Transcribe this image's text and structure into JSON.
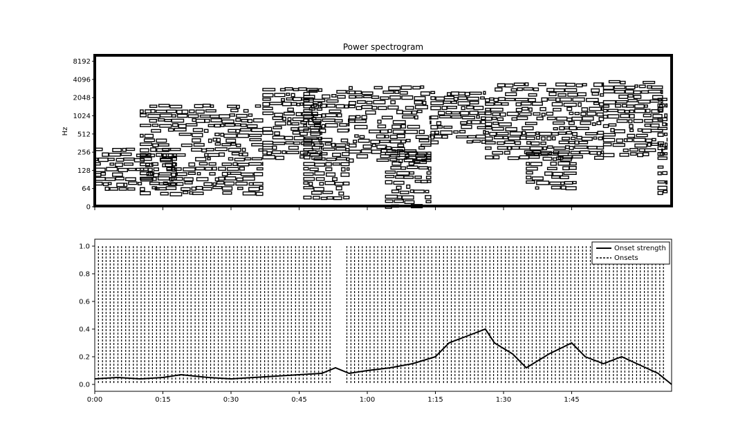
{
  "chart_data": [
    {
      "type": "heatmap",
      "title": "Power spectrogram",
      "ylabel": "Hz",
      "xlabel": "",
      "y_scale": "log",
      "ytick_labels": [
        "0",
        "64",
        "128",
        "256",
        "512",
        "1024",
        "2048",
        "4096",
        "8192"
      ],
      "xlim_seconds": [
        0,
        127
      ],
      "colormap": "black-and-white contour",
      "grid": false,
      "segments": [
        {
          "t0": 0,
          "t1": 18,
          "low": 60,
          "high": 300
        },
        {
          "t0": 10,
          "t1": 37,
          "low": 50,
          "high": 1600
        },
        {
          "t0": 37,
          "t1": 50,
          "low": 200,
          "high": 3000
        },
        {
          "t0": 46,
          "t1": 56,
          "low": 30,
          "high": 2800
        },
        {
          "t0": 56,
          "t1": 74,
          "low": 200,
          "high": 3200
        },
        {
          "t0": 64,
          "t1": 74,
          "low": 0,
          "high": 320
        },
        {
          "t0": 74,
          "t1": 86,
          "low": 350,
          "high": 2600
        },
        {
          "t0": 86,
          "t1": 112,
          "low": 200,
          "high": 3600
        },
        {
          "t0": 95,
          "t1": 106,
          "low": 60,
          "high": 260
        },
        {
          "t0": 112,
          "t1": 125,
          "low": 250,
          "high": 4000
        },
        {
          "t0": 124,
          "t1": 126,
          "low": 50,
          "high": 2000
        }
      ]
    },
    {
      "type": "line",
      "xlabel": "",
      "ylabel": "",
      "xtick_labels": [
        "0:00",
        "0:15",
        "0:30",
        "0:45",
        "1:00",
        "1:15",
        "1:30",
        "1:45"
      ],
      "xlim_seconds": [
        0,
        127
      ],
      "ylim": [
        0,
        1.05
      ],
      "ytick_labels": [
        "0.0",
        "0.2",
        "0.4",
        "0.6",
        "0.8",
        "1.0"
      ],
      "legend_position": "top-right",
      "grid": false,
      "series": [
        {
          "name": "Onset strength",
          "x": [
            0,
            5,
            10,
            15,
            19,
            25,
            30,
            35,
            40,
            45,
            50,
            53,
            56,
            60,
            65,
            70,
            75,
            78,
            82,
            86,
            88,
            92,
            95,
            100,
            105,
            108,
            112,
            116,
            120,
            124,
            127
          ],
          "y": [
            0.04,
            0.05,
            0.04,
            0.05,
            0.07,
            0.05,
            0.04,
            0.05,
            0.06,
            0.07,
            0.08,
            0.12,
            0.08,
            0.1,
            0.12,
            0.15,
            0.2,
            0.3,
            0.35,
            0.4,
            0.3,
            0.22,
            0.12,
            0.22,
            0.3,
            0.2,
            0.15,
            0.2,
            0.14,
            0.08,
            0.0
          ]
        },
        {
          "name": "Onsets",
          "style": "dashed vertical lines, 0 to 1",
          "x": [
            0.8,
            1.7,
            2.5,
            3.4,
            4.2,
            5.1,
            5.9,
            6.8,
            7.6,
            8.5,
            9.3,
            10.2,
            11.0,
            11.9,
            12.7,
            13.6,
            14.4,
            15.3,
            16.1,
            17.0,
            17.8,
            18.7,
            19.5,
            20.4,
            21.2,
            22.1,
            22.9,
            23.8,
            24.6,
            25.5,
            26.3,
            27.2,
            28.0,
            28.9,
            29.7,
            30.6,
            31.4,
            32.3,
            33.1,
            34.0,
            34.8,
            35.7,
            36.5,
            37.4,
            38.2,
            39.1,
            39.9,
            40.8,
            41.6,
            42.5,
            43.3,
            44.2,
            45.0,
            45.9,
            46.7,
            47.6,
            48.4,
            49.3,
            50.1,
            51.0,
            51.8,
            55.5,
            56.4,
            57.2,
            58.1,
            58.9,
            59.8,
            60.6,
            61.5,
            62.3,
            63.2,
            64.0,
            64.9,
            65.7,
            66.6,
            67.4,
            68.3,
            69.1,
            70.0,
            70.8,
            71.7,
            72.5,
            73.4,
            74.2,
            75.1,
            75.9,
            76.8,
            77.6,
            78.5,
            79.3,
            80.2,
            81.0,
            81.9,
            82.7,
            83.6,
            84.4,
            85.3,
            86.1,
            87.0,
            87.8,
            88.7,
            89.5,
            90.4,
            91.2,
            92.1,
            92.9,
            93.8,
            94.6,
            95.5,
            96.3,
            97.2,
            98.0,
            98.9,
            99.7,
            100.6,
            101.4,
            102.3,
            103.1,
            104.0,
            104.8,
            105.7,
            106.5,
            107.4,
            108.2,
            109.1,
            109.9,
            110.8,
            111.6,
            112.5,
            113.3,
            114.2,
            115.0,
            115.9,
            116.7,
            117.6,
            118.4,
            119.3,
            120.1,
            121.0,
            121.8,
            122.7,
            123.5,
            124.4,
            125.2
          ]
        }
      ]
    }
  ]
}
